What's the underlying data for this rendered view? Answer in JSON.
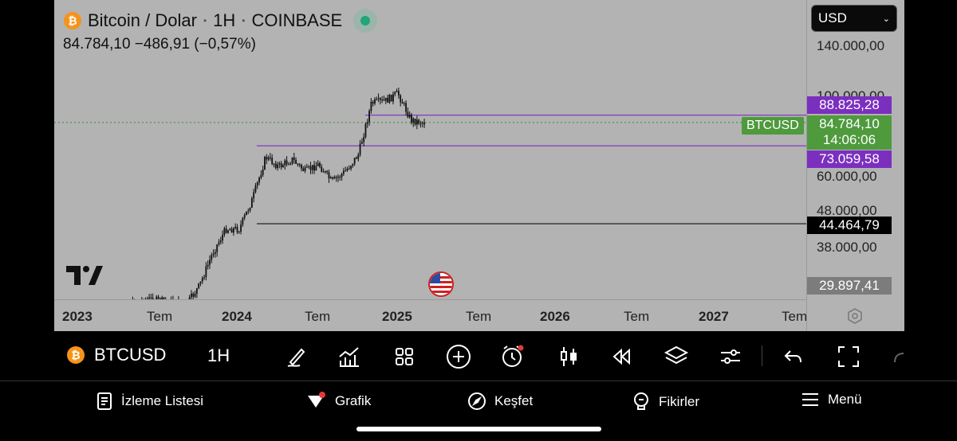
{
  "header": {
    "symbol_name": "Bitcoin / Dolar",
    "interval": "1H",
    "exchange": "COINBASE",
    "price_line": "84.784,10  −486,91 (−0,57%)"
  },
  "currency_selector": {
    "value": "USD"
  },
  "price_axis": {
    "labels": [
      {
        "text": "140.000,00"
      },
      {
        "text": "100.000,00"
      },
      {
        "text": "60.000,00"
      },
      {
        "text": "48.000,00"
      },
      {
        "text": "38.000,00"
      }
    ]
  },
  "price_tags": {
    "upper_line": "88.825,28",
    "current_price": "84.784,10",
    "countdown": "14:06:06",
    "lower_line": "73.059,58",
    "black_line": "44.464,79",
    "bottom": "29.897,41",
    "chip": "BTCUSD"
  },
  "time_axis": [
    "2023",
    "Tem",
    "2024",
    "Tem",
    "2025",
    "Tem",
    "2026",
    "Tem",
    "2027",
    "Tem"
  ],
  "toolbar": {
    "symbol": "BTCUSD",
    "interval": "1H"
  },
  "bottom_nav": {
    "watchlist": "İzleme Listesi",
    "chart": "Grafik",
    "explore": "Keşfet",
    "ideas": "Fikirler",
    "menu": "Menü"
  },
  "colors": {
    "chart_bg": "#b3b3b3",
    "purple_line": "#7b2fbf",
    "green_tag": "#4e9a3d",
    "coin": "#f7931a"
  },
  "chart_data": {
    "type": "candlestick",
    "approx_close_path": [
      {
        "t": "2023-03",
        "p": 25000
      },
      {
        "t": "2023-06",
        "p": 27500
      },
      {
        "t": "2023-09",
        "p": 26500
      },
      {
        "t": "2023-10",
        "p": 30000
      },
      {
        "t": "2023-11",
        "p": 37000
      },
      {
        "t": "2023-12",
        "p": 43000
      },
      {
        "t": "2024-01",
        "p": 43000
      },
      {
        "t": "2024-02",
        "p": 52000
      },
      {
        "t": "2024-03",
        "p": 68000
      },
      {
        "t": "2024-04",
        "p": 64000
      },
      {
        "t": "2024-05",
        "p": 67000
      },
      {
        "t": "2024-06",
        "p": 62000
      },
      {
        "t": "2024-07",
        "p": 65000
      },
      {
        "t": "2024-08",
        "p": 58000
      },
      {
        "t": "2024-09",
        "p": 62000
      },
      {
        "t": "2024-10",
        "p": 69000
      },
      {
        "t": "2024-11",
        "p": 96000
      },
      {
        "t": "2024-12",
        "p": 97000
      },
      {
        "t": "2025-01",
        "p": 102000
      },
      {
        "t": "2025-02",
        "p": 86000
      },
      {
        "t": "2025-03",
        "p": 84784
      }
    ],
    "horizontal_lines": [
      88825.28,
      73059.58,
      44464.79
    ]
  }
}
